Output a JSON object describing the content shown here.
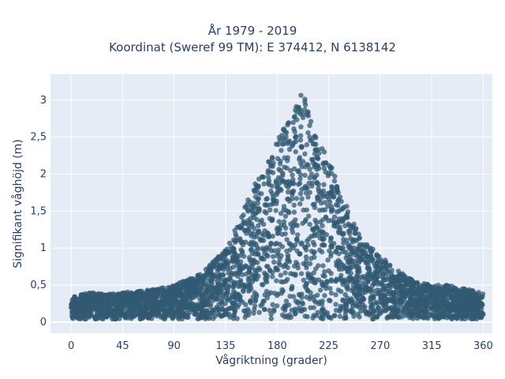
{
  "chart_data": {
    "type": "scatter",
    "title": "År 1979 - 2019",
    "subtitle": "Koordinat (Sweref 99 TM): E 374412, N 6138142",
    "xlabel": "Vågriktning (grader)",
    "ylabel": "Signifikant våghöjd (m)",
    "xlim": [
      -18,
      368
    ],
    "ylim": [
      -0.15,
      3.35
    ],
    "xticks": [
      0,
      45,
      90,
      135,
      180,
      225,
      270,
      315,
      360
    ],
    "xtick_labels": [
      "0",
      "45",
      "90",
      "135",
      "180",
      "225",
      "270",
      "315",
      "360"
    ],
    "yticks": [
      0,
      0.5,
      1,
      1.5,
      2,
      2.5,
      3
    ],
    "ytick_labels": [
      "0",
      "0,5",
      "1",
      "1,5",
      "2",
      "2,5",
      "3"
    ],
    "grid": true,
    "marker_color": "#325a73",
    "plot_bg": "#e5ecf6",
    "series": [
      {
        "x": [
          0,
          10,
          20,
          30,
          45,
          60,
          75,
          90,
          105,
          120,
          135,
          145,
          155,
          165,
          175,
          185,
          195,
          200,
          205,
          215,
          225,
          235,
          245,
          255,
          270,
          285,
          300,
          315,
          330,
          345,
          360
        ],
        "y": [
          0.35,
          0.38,
          0.4,
          0.38,
          0.4,
          0.42,
          0.45,
          0.5,
          0.6,
          0.75,
          1.0,
          1.3,
          1.7,
          2.0,
          2.3,
          2.6,
          2.8,
          3.2,
          3.0,
          2.5,
          2.2,
          1.8,
          1.4,
          1.1,
          0.9,
          0.7,
          0.55,
          0.5,
          0.5,
          0.45,
          0.4
        ]
      }
    ]
  }
}
